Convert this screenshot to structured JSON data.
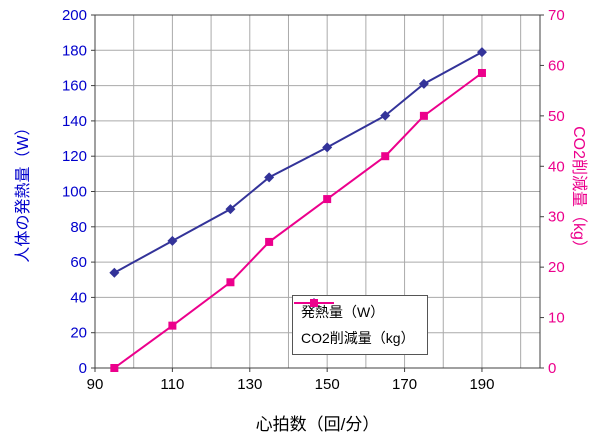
{
  "chart_data": {
    "type": "line",
    "title": "",
    "xlabel": "心拍数（回/分）",
    "ylabel_left": "人体の発熱量（W）",
    "ylabel_right": "CO2削減量（kg）",
    "xlim": [
      90,
      205
    ],
    "x_grid_step": 10,
    "x_grid_max": 200,
    "x_ticks": [
      90,
      110,
      130,
      150,
      170,
      190
    ],
    "ylim_left": [
      0,
      200
    ],
    "y_left_ticks": [
      0,
      20,
      40,
      60,
      80,
      100,
      120,
      140,
      160,
      180,
      200
    ],
    "ylim_right": [
      0,
      70
    ],
    "y_right_ticks": [
      0,
      10,
      20,
      30,
      40,
      50,
      60,
      70
    ],
    "axis_color_left": "#0000CC",
    "axis_color_right": "#EC008C",
    "grid_color": "#aaaaaa",
    "border_color": "#404040",
    "legend_position": "inside-bottom-right",
    "grid": true,
    "series": [
      {
        "name": "発熱量（W）",
        "axis": "left",
        "color": "#333399",
        "marker": "diamond",
        "x": [
          95,
          110,
          125,
          135,
          150,
          165,
          175,
          190
        ],
        "y": [
          54,
          72,
          90,
          108,
          125,
          143,
          161,
          179
        ]
      },
      {
        "name": "CO2削減量（kg）",
        "axis": "right",
        "color": "#EC008C",
        "marker": "square",
        "x": [
          95,
          110,
          125,
          135,
          150,
          165,
          175,
          190
        ],
        "y": [
          0,
          8.4,
          17,
          25,
          33.5,
          42,
          50,
          58.5
        ]
      }
    ]
  }
}
